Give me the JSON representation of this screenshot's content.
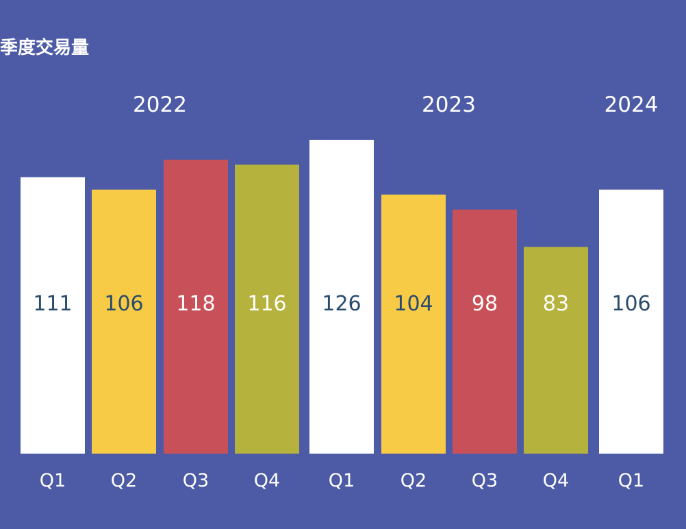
{
  "chart_data": {
    "type": "bar",
    "title": "季度交易量",
    "categories": [
      "Q1",
      "Q2",
      "Q3",
      "Q4",
      "Q1",
      "Q2",
      "Q3",
      "Q4",
      "Q1"
    ],
    "years": [
      "2022",
      "",
      "",
      "",
      "2023",
      "",
      "",
      "",
      "2024"
    ],
    "group_labels": [
      {
        "label": "2022",
        "first": 0,
        "last": 3
      },
      {
        "label": "2023",
        "first": 4,
        "last": 7
      },
      {
        "label": "2024",
        "first": 8,
        "last": 8
      }
    ],
    "values": [
      111,
      106,
      118,
      116,
      126,
      104,
      98,
      83,
      106
    ],
    "ylim": [
      0,
      126
    ],
    "bar_colors": [
      "#ffffff",
      "#f7cb45",
      "#c85058",
      "#b5b23d",
      "#ffffff",
      "#f7cb45",
      "#c85058",
      "#b5b23d",
      "#ffffff"
    ],
    "label_colors": [
      "#2a4b6e",
      "#2a4b6e",
      "#ffffff",
      "#ffffff",
      "#2a4b6e",
      "#2a4b6e",
      "#ffffff",
      "#ffffff",
      "#2a4b6e"
    ],
    "background": "#4d5aa6",
    "xlabel": "",
    "ylabel": "",
    "grid": false,
    "legend": "none"
  }
}
